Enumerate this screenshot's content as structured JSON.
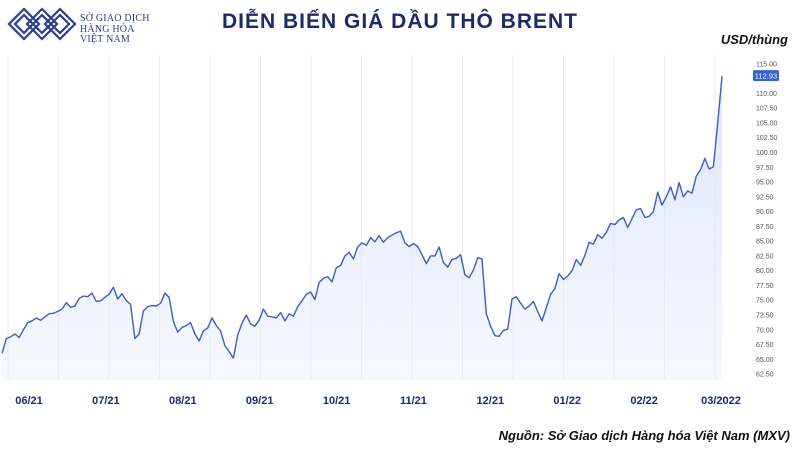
{
  "header": {
    "logo_lines": [
      "SỞ GIAO DỊCH",
      "HÀNG HÓA",
      "VIỆT NAM"
    ],
    "title": "DIỄN BIẾN GIÁ DẦU THÔ BRENT",
    "unit": "USD/thùng",
    "source": "Nguồn: Sở Giao dịch Hàng hóa Việt Nam (MXV)"
  },
  "colors": {
    "title": "#1d2a6b",
    "line": "#3c5ccf",
    "fill": "#dce6fb",
    "badge": "#3563d9",
    "grid": "#eceef3",
    "logo": "#2a3f8f"
  },
  "chart_data": {
    "type": "area",
    "ylabel": "USD/thùng",
    "ylim": [
      61.5,
      116.5
    ],
    "y_ticks": [
      "62.50",
      "65.00",
      "67.50",
      "70.00",
      "72.50",
      "75.00",
      "77.50",
      "80.00",
      "82.50",
      "85.00",
      "87.50",
      "90.00",
      "92.50",
      "95.00",
      "97.50",
      "100.00",
      "102.50",
      "105.00",
      "107.50",
      "110.00",
      "115.00"
    ],
    "x_ticks": [
      "06/21",
      "07/21",
      "08/21",
      "09/21",
      "10/21",
      "11/21",
      "12/21",
      "01/22",
      "02/22",
      "03/2022"
    ],
    "last_value_label": "112.93",
    "series": [
      {
        "values": [
          66.0,
          68.5,
          68.8,
          69.3,
          68.7,
          70.0,
          71.2,
          71.5,
          72.0,
          71.6,
          72.2,
          72.7,
          72.8,
          73.1,
          73.5,
          74.6,
          73.8,
          74.0,
          75.3,
          75.7,
          75.6,
          76.2,
          74.8,
          74.9,
          75.5,
          76.0,
          77.2,
          75.2,
          76.1,
          74.9,
          74.3,
          68.5,
          69.3,
          73.2,
          73.9,
          74.1,
          74.0,
          74.5,
          76.2,
          75.5,
          71.4,
          69.6,
          70.4,
          70.7,
          71.2,
          69.3,
          68.1,
          69.8,
          70.3,
          72.0,
          70.7,
          69.8,
          67.3,
          66.3,
          65.2,
          69.1,
          71.1,
          72.5,
          71.0,
          70.6,
          71.6,
          73.5,
          72.3,
          72.2,
          72.0,
          72.9,
          71.5,
          72.7,
          72.3,
          73.9,
          74.9,
          76.0,
          76.4,
          75.1,
          78.0,
          78.7,
          79.0,
          78.1,
          80.5,
          80.9,
          82.5,
          83.1,
          82.0,
          84.0,
          84.7,
          84.3,
          85.6,
          84.9,
          85.9,
          84.8,
          85.6,
          86.0,
          86.4,
          86.7,
          84.7,
          84.1,
          84.6,
          84.1,
          82.7,
          81.2,
          82.5,
          82.5,
          84.0,
          81.4,
          80.6,
          81.9,
          82.1,
          82.7,
          79.3,
          78.8,
          80.1,
          82.2,
          82.0,
          72.7,
          70.6,
          69.0,
          68.9,
          69.9,
          70.1,
          75.2,
          75.6,
          74.5,
          73.5,
          74.0,
          74.8,
          73.1,
          71.5,
          73.7,
          76.0,
          77.0,
          79.5,
          78.5,
          79.1,
          80.0,
          81.9,
          80.9,
          82.6,
          84.8,
          84.5,
          86.1,
          85.5,
          86.5,
          88.0,
          87.8,
          88.6,
          89.0,
          87.3,
          88.8,
          90.3,
          90.5,
          89.0,
          89.2,
          90.0,
          93.3,
          91.1,
          92.5,
          94.2,
          92.0,
          94.9,
          92.5,
          93.5,
          93.1,
          96.0,
          97.1,
          99.0,
          97.2,
          97.6,
          105.0,
          112.9
        ]
      }
    ]
  }
}
